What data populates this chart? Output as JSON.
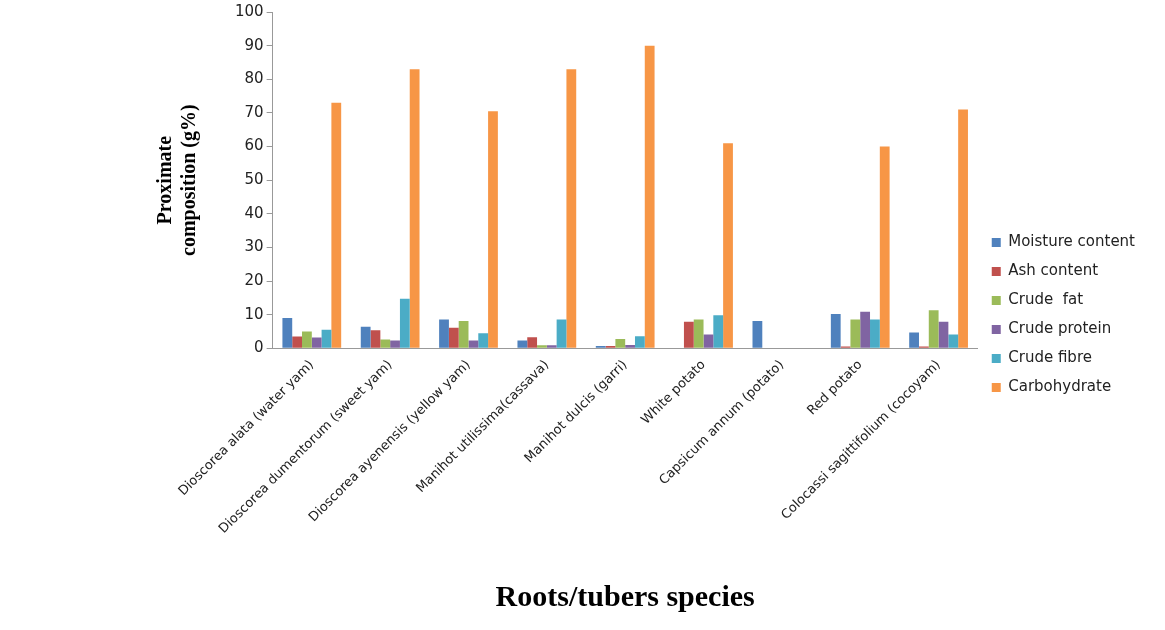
{
  "chart_data": {
    "type": "bar",
    "xlabel": "Roots/tubers species",
    "ylabel": "Proximate composition (g%)",
    "categories": [
      "Dioscorea alata (water yam)",
      "Dioscorea dumentorum (sweet yam)",
      "Dioscorea ayenensis (yellow yam)",
      "Manihot utilissima(cassava)",
      "Manihot dulcis (garri)",
      "White potato",
      "Capsicum annum (potato)",
      "Red potato",
      "Colocassi sagittifolium (cocoyam)"
    ],
    "series": [
      {
        "name": "Moisture content",
        "color": "#4f81bd",
        "values": [
          9,
          6.4,
          8.6,
          2.3,
          0.7,
          0,
          8.1,
          10.2,
          4.7
        ]
      },
      {
        "name": "Ash content",
        "color": "#c0504d",
        "values": [
          3.5,
          5.4,
          6.1,
          3.3,
          0.7,
          7.9,
          0,
          0.5,
          0.5
        ]
      },
      {
        "name": "Crude  fat",
        "color": "#9bbb59",
        "values": [
          5,
          2.6,
          8.1,
          0.9,
          2.8,
          8.6,
          0,
          8.6,
          11.3
        ]
      },
      {
        "name": "Crude protein",
        "color": "#8064a2",
        "values": [
          3.2,
          2.3,
          2.3,
          0.9,
          1,
          4.1,
          0,
          10.9,
          7.9
        ]
      },
      {
        "name": "Crude fibre",
        "color": "#4bacc6",
        "values": [
          5.5,
          14.7,
          4.5,
          8.6,
          3.6,
          9.8,
          0,
          8.6,
          4.1
        ]
      },
      {
        "name": "Carbohydrate",
        "color": "#f79646",
        "values": [
          73,
          83,
          70.5,
          83,
          90,
          61,
          0,
          60,
          71
        ]
      }
    ],
    "ylim": [
      0,
      100
    ],
    "yticks": [
      0,
      10,
      20,
      30,
      40,
      50,
      60,
      70,
      80,
      90,
      100
    ],
    "grid": false,
    "legend": "right"
  }
}
